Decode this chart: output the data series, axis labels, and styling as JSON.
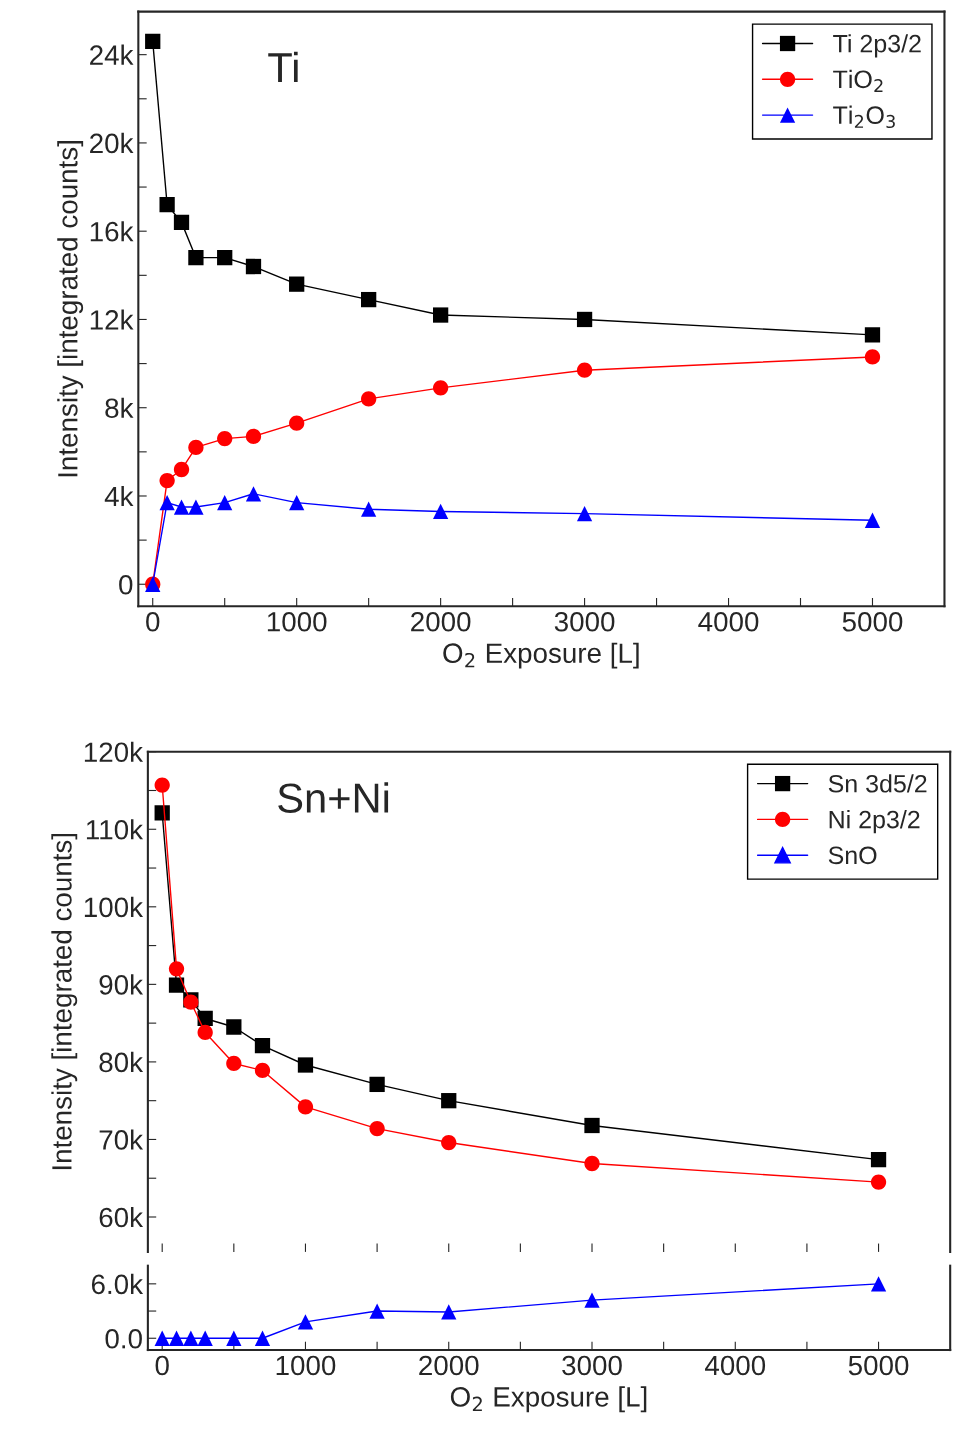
{
  "chart_data": [
    {
      "type": "line",
      "title": "Ti",
      "xlabel": "O$_{2}$ Exposure [L]",
      "ylabel": "Intensity [integrated counts]",
      "x": [
        0,
        100,
        200,
        300,
        500,
        700,
        1000,
        1500,
        2000,
        3000,
        5000
      ],
      "series": [
        {
          "name": "Ti 2p3/2",
          "color": "#000000",
          "marker": "square",
          "values": [
            24600,
            17200,
            16400,
            14800,
            14800,
            14400,
            13600,
            12900,
            12200,
            12000,
            11300
          ]
        },
        {
          "name": "TiO$_{2}$",
          "color": "#ff0000",
          "marker": "circle",
          "values": [
            0,
            4700,
            5200,
            6200,
            6600,
            6700,
            7300,
            8400,
            8900,
            9700,
            10300
          ]
        },
        {
          "name": "Ti$_{2}$O$_{3}$",
          "color": "#0000ff",
          "marker": "triangle",
          "values": [
            0,
            3700,
            3500,
            3500,
            3700,
            4100,
            3700,
            3400,
            3300,
            3200,
            2900
          ]
        }
      ],
      "xlim": [
        -100,
        5500
      ],
      "xticks": [
        0,
        {
          "value": 500,
          "label": null
        },
        1000,
        {
          "value": 1500,
          "label": null
        },
        2000,
        {
          "value": 2500,
          "label": null
        },
        3000,
        {
          "value": 3500,
          "label": null
        },
        4000,
        {
          "value": 4500,
          "label": null
        },
        5000
      ],
      "ylim": [
        -1000,
        25950
      ],
      "yticks": [
        {
          "value": 0,
          "label": "0"
        },
        {
          "value": 2000,
          "label": null
        },
        {
          "value": 4000,
          "label": "4k"
        },
        {
          "value": 6000,
          "label": null
        },
        {
          "value": 8000,
          "label": "8k"
        },
        {
          "value": 10000,
          "label": null
        },
        {
          "value": 12000,
          "label": "12k"
        },
        {
          "value": 14000,
          "label": null
        },
        {
          "value": 16000,
          "label": "16k"
        },
        {
          "value": 18000,
          "label": null
        },
        {
          "value": 20000,
          "label": "20k"
        },
        {
          "value": 22000,
          "label": null
        },
        {
          "value": 24000,
          "label": "24k"
        }
      ],
      "legend": "top right",
      "grid": false
    },
    {
      "type": "line",
      "title": "Sn+Ni",
      "ylabel": "Intensity [integrated counts]",
      "x": [
        0,
        100,
        200,
        300,
        500,
        700,
        1000,
        1500,
        2000,
        3000,
        5000
      ],
      "series": [
        {
          "name": "Sn 3d5/2",
          "color": "#000000",
          "marker": "square",
          "values": [
            112100,
            89900,
            88000,
            85600,
            84500,
            82100,
            79600,
            77100,
            75000,
            71800,
            67400
          ]
        },
        {
          "name": "Ni 2p3/2",
          "color": "#ff0000",
          "marker": "circle",
          "values": [
            115700,
            92000,
            87700,
            83800,
            79800,
            78900,
            74200,
            71400,
            69600,
            66900,
            64500
          ]
        },
        {
          "name": "SnO",
          "color": "#0000ff",
          "marker": "triangle",
          "values": [
            null,
            null,
            null,
            null,
            null,
            null,
            null,
            null,
            null,
            null,
            null
          ]
        }
      ],
      "xlim": [
        -100,
        5500
      ],
      "xticks": [
        0,
        {
          "value": 500,
          "label": null
        },
        1000,
        {
          "value": 1500,
          "label": null
        },
        2000,
        {
          "value": 2500,
          "label": null
        },
        3000,
        {
          "value": 3500,
          "label": null
        },
        4000,
        {
          "value": 4500,
          "label": null
        },
        5000
      ],
      "ylim": [
        55500,
        120000
      ],
      "yticks": [
        {
          "value": 60000,
          "label": "60k"
        },
        {
          "value": 65000,
          "label": null
        },
        {
          "value": 70000,
          "label": "70k"
        },
        {
          "value": 75000,
          "label": null
        },
        {
          "value": 80000,
          "label": "80k"
        },
        {
          "value": 85000,
          "label": null
        },
        {
          "value": 90000,
          "label": "90k"
        },
        {
          "value": 95000,
          "label": null
        },
        {
          "value": 100000,
          "label": "100k"
        },
        {
          "value": 105000,
          "label": null
        },
        {
          "value": 110000,
          "label": "110k"
        },
        {
          "value": 115000,
          "label": null
        },
        {
          "value": 120000,
          "label": "120k"
        }
      ],
      "tick_labels": "y",
      "legend": "top right",
      "grid": false
    },
    {
      "type": "line",
      "xlabel": "O$_{2}$ Exposure [L]",
      "x": [
        0,
        100,
        200,
        300,
        500,
        700,
        1000,
        1500,
        2000,
        3000,
        5000
      ],
      "series": [
        {
          "color": "#0000ff",
          "marker": "triangle",
          "values": [
            0,
            0,
            0,
            0,
            0,
            0,
            1800,
            3000,
            2900,
            4200,
            6000
          ]
        }
      ],
      "xlim": [
        -100,
        5500
      ],
      "xticks": [
        0,
        {
          "value": 500,
          "label": null
        },
        1000,
        {
          "value": 1500,
          "label": null
        },
        2000,
        {
          "value": 2500,
          "label": null
        },
        3000,
        {
          "value": 3500,
          "label": null
        },
        4000,
        {
          "value": 4500,
          "label": null
        },
        5000
      ],
      "ylim": [
        -1300,
        8000
      ],
      "yticks": [
        {
          "value": 0,
          "label": "0.0"
        },
        {
          "value": 3000,
          "label": null
        },
        {
          "value": 6000,
          "label": "6.0k"
        }
      ],
      "grid": false
    }
  ]
}
